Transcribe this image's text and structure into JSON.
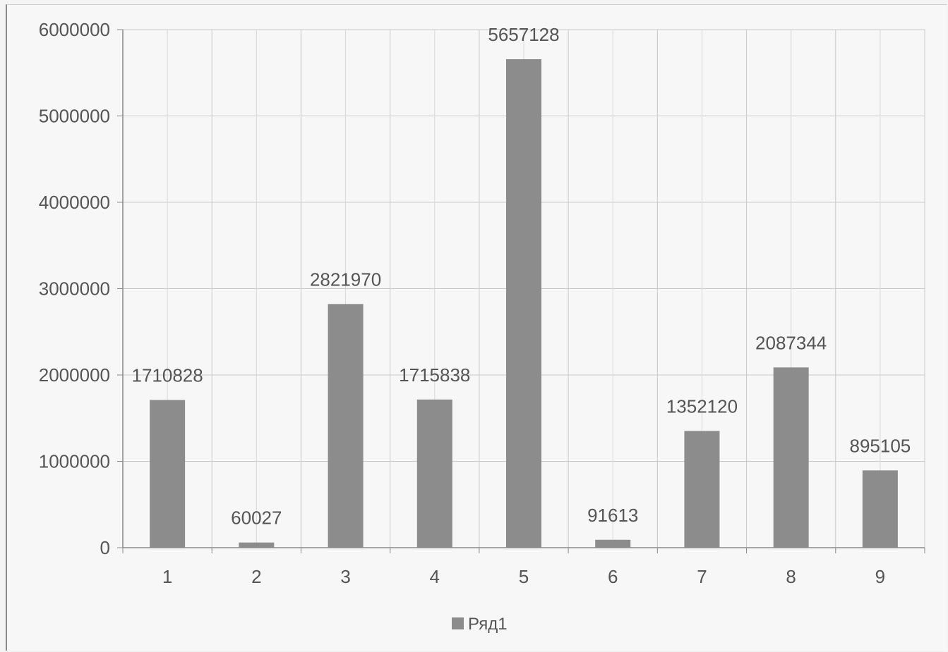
{
  "chart_data": {
    "type": "bar",
    "categories": [
      "1",
      "2",
      "3",
      "4",
      "5",
      "6",
      "7",
      "8",
      "9"
    ],
    "series": [
      {
        "name": "Ряд1",
        "values": [
          1710828,
          60027,
          2821970,
          1715838,
          5657128,
          91613,
          1352120,
          2087344,
          895105
        ],
        "labels": [
          "1710828",
          "60027",
          "2821970",
          "1715838",
          "5657128",
          "91613",
          "1352120",
          "2087344",
          "895105"
        ],
        "color": "#8c8c8c"
      }
    ],
    "yticks": [
      0,
      1000000,
      2000000,
      3000000,
      4000000,
      5000000,
      6000000
    ],
    "ytick_labels": [
      "0",
      "1000000",
      "2000000",
      "3000000",
      "4000000",
      "5000000",
      "6000000"
    ],
    "ylim": [
      0,
      6000000
    ],
    "grid": true,
    "legend": "bottom-center"
  }
}
